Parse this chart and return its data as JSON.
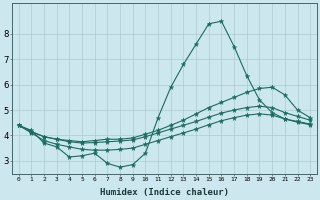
{
  "xlabel": "Humidex (Indice chaleur)",
  "bg_color": "#cce8ee",
  "grid_color": "#aacccc",
  "line_color": "#1a6b60",
  "xlim": [
    -0.5,
    23.5
  ],
  "ylim": [
    2.5,
    9.2
  ],
  "yticks": [
    3,
    4,
    5,
    6,
    7,
    8
  ],
  "xticks": [
    0,
    1,
    2,
    3,
    4,
    5,
    6,
    7,
    8,
    9,
    10,
    11,
    12,
    13,
    14,
    15,
    16,
    17,
    18,
    19,
    20,
    21,
    22,
    23
  ],
  "lines": [
    {
      "x": [
        0,
        1,
        2,
        3,
        4,
        5,
        6,
        7,
        8,
        9,
        10,
        11,
        12,
        13,
        14,
        15,
        16,
        17,
        18,
        19,
        20,
        21,
        22,
        23
      ],
      "y": [
        4.4,
        4.2,
        3.7,
        3.55,
        3.15,
        3.2,
        3.3,
        2.9,
        2.75,
        2.85,
        3.3,
        4.7,
        5.9,
        6.8,
        7.6,
        8.4,
        8.5,
        7.5,
        6.35,
        5.4,
        4.9,
        4.65,
        4.55,
        4.45
      ]
    },
    {
      "x": [
        0,
        1,
        2,
        3,
        4,
        5,
        6,
        7,
        8,
        9,
        10,
        11,
        12,
        13,
        14,
        15,
        16,
        17,
        18,
        19,
        20,
        21,
        22,
        23
      ],
      "y": [
        4.4,
        4.15,
        3.95,
        3.85,
        3.8,
        3.75,
        3.8,
        3.85,
        3.85,
        3.9,
        4.05,
        4.2,
        4.4,
        4.6,
        4.85,
        5.1,
        5.3,
        5.5,
        5.7,
        5.85,
        5.9,
        5.6,
        5.0,
        4.7
      ]
    },
    {
      "x": [
        0,
        1,
        2,
        3,
        4,
        5,
        6,
        7,
        8,
        9,
        10,
        11,
        12,
        13,
        14,
        15,
        16,
        17,
        18,
        19,
        20,
        21,
        22,
        23
      ],
      "y": [
        4.4,
        4.15,
        3.95,
        3.85,
        3.75,
        3.7,
        3.72,
        3.75,
        3.78,
        3.82,
        3.95,
        4.1,
        4.25,
        4.4,
        4.55,
        4.72,
        4.88,
        5.0,
        5.1,
        5.15,
        5.1,
        4.9,
        4.75,
        4.6
      ]
    },
    {
      "x": [
        0,
        1,
        2,
        3,
        4,
        5,
        6,
        7,
        8,
        9,
        10,
        11,
        12,
        13,
        14,
        15,
        16,
        17,
        18,
        19,
        20,
        21,
        22,
        23
      ],
      "y": [
        4.4,
        4.1,
        3.8,
        3.65,
        3.55,
        3.45,
        3.42,
        3.42,
        3.45,
        3.5,
        3.65,
        3.8,
        3.95,
        4.1,
        4.25,
        4.42,
        4.58,
        4.7,
        4.8,
        4.85,
        4.8,
        4.65,
        4.52,
        4.42
      ]
    }
  ]
}
